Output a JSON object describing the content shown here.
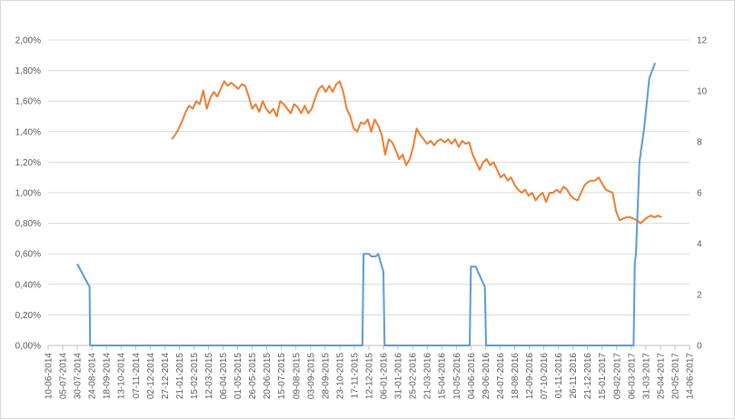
{
  "chart_data": {
    "type": "line",
    "title": "",
    "xlabel": "",
    "ylabel": "",
    "grid": true,
    "legend": "none",
    "x_tick_labels": [
      "10-06-2014",
      "05-07-2014",
      "30-07-2014",
      "24-08-2014",
      "18-09-2014",
      "13-10-2014",
      "07-11-2014",
      "02-12-2014",
      "27-12-2014",
      "21-01-2015",
      "15-02-2015",
      "12-03-2015",
      "06-04-2015",
      "01-05-2015",
      "26-05-2015",
      "20-06-2015",
      "15-07-2015",
      "09-08-2015",
      "03-09-2015",
      "28-09-2015",
      "23-10-2015",
      "17-11-2015",
      "12-12-2015",
      "06-01-2016",
      "31-01-2016",
      "25-02-2016",
      "21-03-2016",
      "15-04-2016",
      "10-05-2016",
      "04-06-2016",
      "29-06-2016",
      "24-07-2016",
      "18-08-2016",
      "12-09-2016",
      "07-10-2016",
      "01-11-2016",
      "26-11-2016",
      "21-12-2016",
      "15-01-2017",
      "09-02-2017",
      "06-03-2017",
      "31-03-2017",
      "25-04-2017",
      "20-05-2017",
      "14-06-2017"
    ],
    "y_left": {
      "ticks": [
        "0,00%",
        "0,20%",
        "0,40%",
        "0,60%",
        "0,80%",
        "1,00%",
        "1,20%",
        "1,40%",
        "1,60%",
        "1,80%",
        "2,00%"
      ],
      "ylim": [
        0,
        2.0
      ],
      "unit": "%"
    },
    "y_right": {
      "ticks": [
        "0",
        "2",
        "4",
        "6",
        "8",
        "10",
        "12"
      ],
      "ylim": [
        0,
        12
      ]
    },
    "series": [
      {
        "axis": "left",
        "color": "#ed7d31",
        "points": [
          [
            "2015-01-08",
            1.35
          ],
          [
            "2015-01-14",
            1.38
          ],
          [
            "2015-01-20",
            1.42
          ],
          [
            "2015-01-26",
            1.47
          ],
          [
            "2015-02-01",
            1.53
          ],
          [
            "2015-02-07",
            1.57
          ],
          [
            "2015-02-13",
            1.55
          ],
          [
            "2015-02-19",
            1.6
          ],
          [
            "2015-02-25",
            1.58
          ],
          [
            "2015-03-03",
            1.67
          ],
          [
            "2015-03-09",
            1.55
          ],
          [
            "2015-03-15",
            1.62
          ],
          [
            "2015-03-21",
            1.66
          ],
          [
            "2015-03-27",
            1.63
          ],
          [
            "2015-04-02",
            1.68
          ],
          [
            "2015-04-08",
            1.73
          ],
          [
            "2015-04-14",
            1.7
          ],
          [
            "2015-04-20",
            1.72
          ],
          [
            "2015-04-26",
            1.7
          ],
          [
            "2015-05-02",
            1.68
          ],
          [
            "2015-05-08",
            1.71
          ],
          [
            "2015-05-14",
            1.7
          ],
          [
            "2015-05-20",
            1.63
          ],
          [
            "2015-05-26",
            1.55
          ],
          [
            "2015-06-01",
            1.58
          ],
          [
            "2015-06-07",
            1.53
          ],
          [
            "2015-06-13",
            1.6
          ],
          [
            "2015-06-19",
            1.55
          ],
          [
            "2015-06-25",
            1.52
          ],
          [
            "2015-07-01",
            1.55
          ],
          [
            "2015-07-07",
            1.5
          ],
          [
            "2015-07-13",
            1.6
          ],
          [
            "2015-07-19",
            1.58
          ],
          [
            "2015-07-25",
            1.55
          ],
          [
            "2015-07-31",
            1.52
          ],
          [
            "2015-08-06",
            1.58
          ],
          [
            "2015-08-12",
            1.56
          ],
          [
            "2015-08-18",
            1.52
          ],
          [
            "2015-08-24",
            1.57
          ],
          [
            "2015-08-30",
            1.52
          ],
          [
            "2015-09-05",
            1.55
          ],
          [
            "2015-09-11",
            1.62
          ],
          [
            "2015-09-17",
            1.68
          ],
          [
            "2015-09-23",
            1.7
          ],
          [
            "2015-09-29",
            1.66
          ],
          [
            "2015-10-05",
            1.7
          ],
          [
            "2015-10-11",
            1.66
          ],
          [
            "2015-10-17",
            1.71
          ],
          [
            "2015-10-23",
            1.73
          ],
          [
            "2015-10-29",
            1.66
          ],
          [
            "2015-11-04",
            1.55
          ],
          [
            "2015-11-10",
            1.5
          ],
          [
            "2015-11-16",
            1.42
          ],
          [
            "2015-11-22",
            1.4
          ],
          [
            "2015-11-28",
            1.46
          ],
          [
            "2015-12-04",
            1.45
          ],
          [
            "2015-12-10",
            1.48
          ],
          [
            "2015-12-16",
            1.4
          ],
          [
            "2015-12-22",
            1.48
          ],
          [
            "2015-12-28",
            1.44
          ],
          [
            "2016-01-03",
            1.38
          ],
          [
            "2016-01-09",
            1.25
          ],
          [
            "2016-01-15",
            1.35
          ],
          [
            "2016-01-21",
            1.33
          ],
          [
            "2016-01-27",
            1.28
          ],
          [
            "2016-02-02",
            1.22
          ],
          [
            "2016-02-08",
            1.25
          ],
          [
            "2016-02-14",
            1.18
          ],
          [
            "2016-02-20",
            1.22
          ],
          [
            "2016-02-26",
            1.3
          ],
          [
            "2016-03-03",
            1.42
          ],
          [
            "2016-03-09",
            1.38
          ],
          [
            "2016-03-15",
            1.35
          ],
          [
            "2016-03-21",
            1.32
          ],
          [
            "2016-03-27",
            1.34
          ],
          [
            "2016-04-02",
            1.31
          ],
          [
            "2016-04-08",
            1.34
          ],
          [
            "2016-04-14",
            1.35
          ],
          [
            "2016-04-20",
            1.33
          ],
          [
            "2016-04-26",
            1.35
          ],
          [
            "2016-05-02",
            1.32
          ],
          [
            "2016-05-08",
            1.35
          ],
          [
            "2016-05-14",
            1.3
          ],
          [
            "2016-05-20",
            1.34
          ],
          [
            "2016-05-26",
            1.32
          ],
          [
            "2016-06-01",
            1.33
          ],
          [
            "2016-06-07",
            1.25
          ],
          [
            "2016-06-13",
            1.2
          ],
          [
            "2016-06-19",
            1.15
          ],
          [
            "2016-06-25",
            1.2
          ],
          [
            "2016-07-01",
            1.22
          ],
          [
            "2016-07-07",
            1.18
          ],
          [
            "2016-07-13",
            1.2
          ],
          [
            "2016-07-19",
            1.15
          ],
          [
            "2016-07-25",
            1.1
          ],
          [
            "2016-07-31",
            1.12
          ],
          [
            "2016-08-06",
            1.08
          ],
          [
            "2016-08-12",
            1.1
          ],
          [
            "2016-08-18",
            1.05
          ],
          [
            "2016-08-24",
            1.02
          ],
          [
            "2016-08-30",
            1.0
          ],
          [
            "2016-09-05",
            1.02
          ],
          [
            "2016-09-11",
            0.98
          ],
          [
            "2016-09-17",
            1.0
          ],
          [
            "2016-09-23",
            0.95
          ],
          [
            "2016-09-29",
            0.98
          ],
          [
            "2016-10-05",
            1.0
          ],
          [
            "2016-10-11",
            0.94
          ],
          [
            "2016-10-17",
            1.0
          ],
          [
            "2016-10-23",
            1.0
          ],
          [
            "2016-10-29",
            1.02
          ],
          [
            "2016-11-04",
            1.0
          ],
          [
            "2016-11-10",
            1.04
          ],
          [
            "2016-11-16",
            1.02
          ],
          [
            "2016-11-22",
            0.98
          ],
          [
            "2016-11-28",
            0.96
          ],
          [
            "2016-12-04",
            0.95
          ],
          [
            "2016-12-10",
            1.0
          ],
          [
            "2016-12-16",
            1.05
          ],
          [
            "2016-12-22",
            1.07
          ],
          [
            "2016-12-28",
            1.08
          ],
          [
            "2017-01-03",
            1.08
          ],
          [
            "2017-01-09",
            1.1
          ],
          [
            "2017-01-15",
            1.06
          ],
          [
            "2017-01-21",
            1.02
          ],
          [
            "2017-01-27",
            1.01
          ],
          [
            "2017-02-02",
            1.0
          ],
          [
            "2017-02-08",
            0.88
          ],
          [
            "2017-02-14",
            0.82
          ],
          [
            "2017-02-20",
            0.83
          ],
          [
            "2017-02-26",
            0.84
          ],
          [
            "2017-03-04",
            0.84
          ],
          [
            "2017-03-10",
            0.83
          ],
          [
            "2017-03-16",
            0.82
          ],
          [
            "2017-03-22",
            0.8
          ],
          [
            "2017-03-28",
            0.82
          ],
          [
            "2017-04-03",
            0.84
          ],
          [
            "2017-04-09",
            0.85
          ],
          [
            "2017-04-15",
            0.84
          ],
          [
            "2017-04-21",
            0.85
          ],
          [
            "2017-04-27",
            0.84
          ]
        ]
      },
      {
        "axis": "right",
        "color": "#5b9bd5",
        "points": [
          [
            "2014-07-30",
            3.2
          ],
          [
            "2014-08-20",
            2.3
          ],
          [
            "2014-08-21",
            0
          ],
          [
            "2015-12-01",
            0
          ],
          [
            "2015-12-03",
            3.6
          ],
          [
            "2015-12-12",
            3.6
          ],
          [
            "2015-12-16",
            3.5
          ],
          [
            "2015-12-24",
            3.5
          ],
          [
            "2015-12-28",
            3.6
          ],
          [
            "2016-01-06",
            2.9
          ],
          [
            "2016-01-08",
            0
          ],
          [
            "2016-06-02",
            0
          ],
          [
            "2016-06-04",
            3.1
          ],
          [
            "2016-06-12",
            3.1
          ],
          [
            "2016-06-28",
            2.3
          ],
          [
            "2016-06-30",
            0
          ],
          [
            "2017-03-10",
            0
          ],
          [
            "2017-03-12",
            3.2
          ],
          [
            "2017-03-14",
            3.6
          ],
          [
            "2017-03-20",
            7.2
          ],
          [
            "2017-03-28",
            8.5
          ],
          [
            "2017-04-06",
            10.5
          ],
          [
            "2017-04-16",
            11.1
          ]
        ]
      }
    ]
  }
}
